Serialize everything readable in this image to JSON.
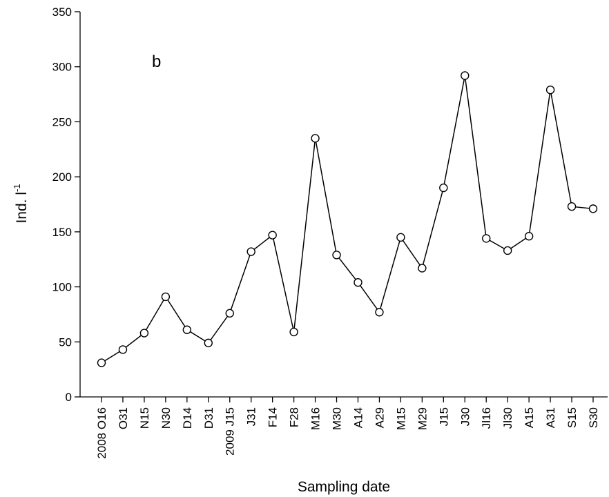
{
  "chart_data": {
    "type": "line",
    "panel_label": "b",
    "xlabel": "Sampling date",
    "ylabel": "Ind. l",
    "ylabel_superscript": "-1",
    "ylim": [
      0,
      350
    ],
    "yticks": [
      0,
      50,
      100,
      150,
      200,
      250,
      300,
      350
    ],
    "ytick_labels": [
      "0",
      "50",
      "100",
      "150",
      "200",
      "250",
      "300",
      "350"
    ],
    "grid": false,
    "legend": "none",
    "categories": [
      "2008 O16",
      "O31",
      "N15",
      "N30",
      "D14",
      "D31",
      "2009 J15",
      "J31",
      "F14",
      "F28",
      "M16",
      "M30",
      "A14",
      "A29",
      "M15",
      "M29",
      "J15",
      "J30",
      "Jl16",
      "Jl30",
      "A15",
      "A31",
      "S15",
      "S30"
    ],
    "series": [
      {
        "values": [
          31,
          43,
          58,
          91,
          61,
          49,
          76,
          132,
          147,
          59,
          235,
          129,
          104,
          77,
          145,
          117,
          190,
          292,
          144,
          133,
          146,
          279,
          173,
          171
        ]
      }
    ],
    "colors": {
      "line": "#000000",
      "marker_fill": "#ffffff",
      "marker_stroke": "#000000"
    }
  }
}
